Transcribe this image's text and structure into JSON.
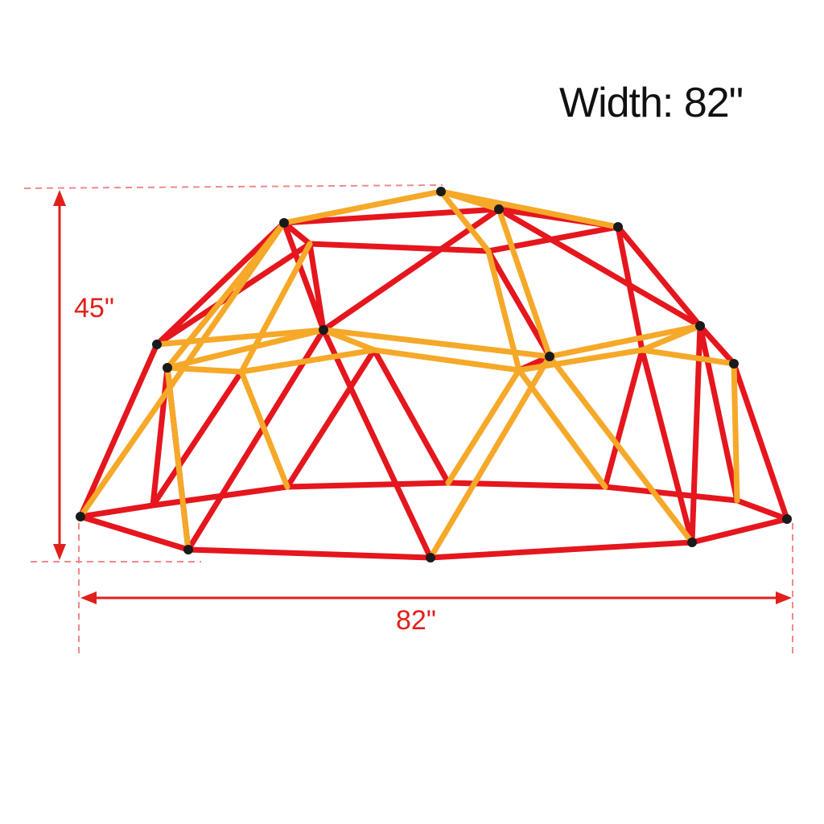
{
  "title": "Width: 82\"",
  "dimensions": {
    "height_label": "45\"",
    "width_label": "82\""
  },
  "colors": {
    "annotation": "#e0201c",
    "dimension_guides": "#f08a8a",
    "strut_red": "#e5161d",
    "strut_orange": "#f6a828",
    "connector": "#1a1a1a"
  }
}
